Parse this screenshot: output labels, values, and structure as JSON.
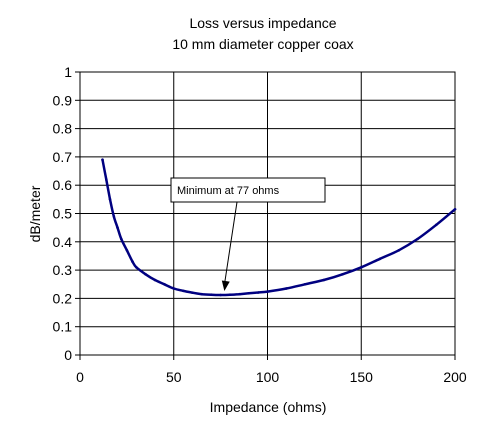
{
  "chart_data": {
    "type": "line",
    "title": "Loss versus impedance",
    "subtitle": "10 mm diameter copper coax",
    "xlabel": "Impedance (ohms)",
    "ylabel": "dB/meter",
    "xlim": [
      0,
      200
    ],
    "ylim": [
      0,
      1
    ],
    "xticks": [
      "0",
      "50",
      "100",
      "150",
      "200"
    ],
    "yticks": [
      "0",
      "0.1",
      "0.2",
      "0.3",
      "0.4",
      "0.5",
      "0.6",
      "0.7",
      "0.8",
      "0.9",
      "1"
    ],
    "grid": true,
    "legend": "none",
    "series": [
      {
        "color": "#000080",
        "x": [
          12,
          14,
          16,
          18,
          20,
          22,
          25,
          28,
          30,
          35,
          40,
          45,
          50,
          55,
          60,
          65,
          70,
          75,
          80,
          85,
          90,
          95,
          100,
          110,
          120,
          130,
          140,
          150,
          160,
          170,
          180,
          190,
          200
        ],
        "y": [
          0.69,
          0.62,
          0.55,
          0.49,
          0.45,
          0.41,
          0.37,
          0.33,
          0.31,
          0.285,
          0.265,
          0.25,
          0.235,
          0.227,
          0.22,
          0.215,
          0.213,
          0.212,
          0.213,
          0.215,
          0.218,
          0.221,
          0.224,
          0.235,
          0.25,
          0.265,
          0.285,
          0.31,
          0.34,
          0.37,
          0.41,
          0.46,
          0.515
        ]
      }
    ],
    "annotations": [
      {
        "text": "Minimum at 77 ohms",
        "x": 77,
        "y": 0.212
      }
    ]
  }
}
